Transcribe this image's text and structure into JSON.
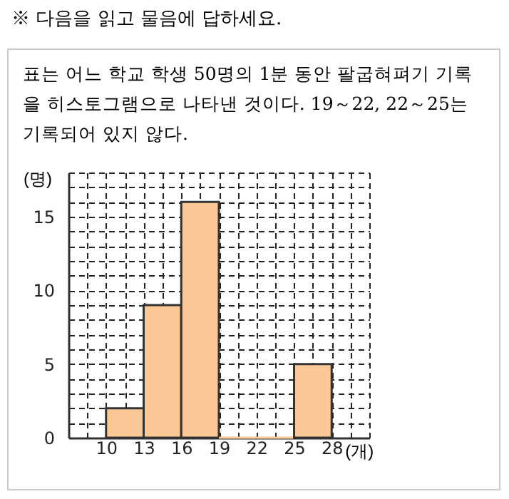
{
  "chart_data": {
    "type": "histogram",
    "title": "※ 다음을 읽고 물음에 답하세요.",
    "subtitle": "표는 어느 학교 학생 50명의 1분 동안 팔굽혀펴기 기록을 히스토그램으로 나타낸 것이다. 19～22, 22～25는 기록되어 있지 않다.",
    "xlabel": "(개)",
    "ylabel": "(명)",
    "bins": [
      10,
      13,
      16,
      19,
      22,
      25,
      28
    ],
    "values": [
      2,
      9,
      16,
      0,
      0,
      5
    ],
    "color": "#fbc997",
    "xlim": [
      7,
      31
    ],
    "xticks": [
      {
        "value": 7,
        "label": null
      },
      {
        "value": 8.5,
        "label": null
      },
      10,
      {
        "value": 11.5,
        "label": null
      },
      13,
      {
        "value": 14.5,
        "label": null
      },
      16,
      {
        "value": 17.5,
        "label": null
      },
      19,
      {
        "value": 20.5,
        "label": null
      },
      22,
      {
        "value": 23.5,
        "label": null
      },
      25,
      {
        "value": 26.5,
        "label": null
      },
      28,
      {
        "value": 29.5,
        "label": null
      },
      {
        "value": 31,
        "label": null
      }
    ],
    "ylim": [
      0,
      18
    ],
    "yticks": [
      0,
      {
        "value": 1,
        "label": null
      },
      {
        "value": 2,
        "label": null
      },
      {
        "value": 3,
        "label": null
      },
      {
        "value": 4,
        "label": null
      },
      5,
      {
        "value": 6,
        "label": null
      },
      {
        "value": 7,
        "label": null
      },
      {
        "value": 8,
        "label": null
      },
      {
        "value": 9,
        "label": null
      },
      10,
      {
        "value": 11,
        "label": null
      },
      {
        "value": 12,
        "label": null
      },
      {
        "value": 13,
        "label": null
      },
      {
        "value": 14,
        "label": null
      },
      15,
      {
        "value": 16,
        "label": null
      },
      {
        "value": 17,
        "label": null
      },
      {
        "value": 18,
        "label": null
      }
    ],
    "grid": true
  }
}
